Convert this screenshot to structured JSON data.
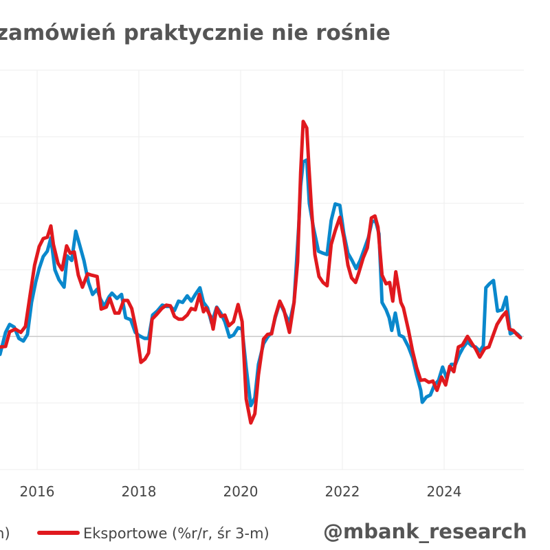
{
  "chart_data": {
    "type": "line",
    "title": "zamówień praktycznie nie rośnie",
    "xlabel": "",
    "ylabel": "",
    "xlim": [
      2015.27,
      2025.57
    ],
    "ylim": [
      -20,
      40
    ],
    "grid": true,
    "y_gridlines": [
      -20,
      -10,
      0,
      10,
      20,
      30,
      40
    ],
    "x_ticks": [
      2016,
      2018,
      2020,
      2022,
      2024
    ],
    "x_tick_labels": [
      "2016",
      "2018",
      "2020",
      "2022",
      "2024"
    ],
    "legend_placement": "bottom",
    "watermark": "@mbank_research",
    "series": [
      {
        "name": "m)",
        "color": "#0a88cc",
        "points": [
          [
            2015.27,
            -2.7
          ],
          [
            2015.38,
            0.6
          ],
          [
            2015.46,
            1.8
          ],
          [
            2015.55,
            1.4
          ],
          [
            2015.64,
            -0.3
          ],
          [
            2015.73,
            -0.7
          ],
          [
            2015.81,
            0.3
          ],
          [
            2015.89,
            5.1
          ],
          [
            2015.97,
            8.1
          ],
          [
            2016.04,
            10.2
          ],
          [
            2016.12,
            12.0
          ],
          [
            2016.2,
            12.8
          ],
          [
            2016.27,
            14.8
          ],
          [
            2016.35,
            10.0
          ],
          [
            2016.43,
            8.5
          ],
          [
            2016.53,
            7.4
          ],
          [
            2016.59,
            12.1
          ],
          [
            2016.68,
            11.4
          ],
          [
            2016.76,
            15.8
          ],
          [
            2016.84,
            13.6
          ],
          [
            2016.92,
            11.4
          ],
          [
            2017.01,
            8.1
          ],
          [
            2017.09,
            6.3
          ],
          [
            2017.18,
            7.1
          ],
          [
            2017.24,
            5.7
          ],
          [
            2017.32,
            4.5
          ],
          [
            2017.41,
            5.9
          ],
          [
            2017.47,
            6.5
          ],
          [
            2017.57,
            5.7
          ],
          [
            2017.66,
            6.3
          ],
          [
            2017.74,
            2.8
          ],
          [
            2017.84,
            2.5
          ],
          [
            2017.93,
            0.6
          ],
          [
            2018.01,
            0.1
          ],
          [
            2018.11,
            -0.3
          ],
          [
            2018.19,
            -0.3
          ],
          [
            2018.27,
            3.2
          ],
          [
            2018.36,
            3.8
          ],
          [
            2018.46,
            4.7
          ],
          [
            2018.54,
            4.5
          ],
          [
            2018.62,
            4.5
          ],
          [
            2018.7,
            3.9
          ],
          [
            2018.78,
            5.3
          ],
          [
            2018.86,
            5.1
          ],
          [
            2018.95,
            6.1
          ],
          [
            2019.03,
            5.3
          ],
          [
            2019.11,
            6.3
          ],
          [
            2019.2,
            7.3
          ],
          [
            2019.27,
            5.1
          ],
          [
            2019.35,
            4.3
          ],
          [
            2019.43,
            2.0
          ],
          [
            2019.53,
            4.4
          ],
          [
            2019.61,
            3.5
          ],
          [
            2019.69,
            2.2
          ],
          [
            2019.78,
            -0.1
          ],
          [
            2019.86,
            0.2
          ],
          [
            2019.95,
            1.3
          ],
          [
            2020.03,
            1.1
          ],
          [
            2020.11,
            -4.7
          ],
          [
            2020.2,
            -10.4
          ],
          [
            2020.28,
            -9.2
          ],
          [
            2020.35,
            -4.2
          ],
          [
            2020.45,
            -1.1
          ],
          [
            2020.53,
            -0.1
          ],
          [
            2020.61,
            0.6
          ],
          [
            2020.68,
            2.8
          ],
          [
            2020.77,
            5.1
          ],
          [
            2020.85,
            3.8
          ],
          [
            2020.96,
            2.0
          ],
          [
            2021.05,
            5.1
          ],
          [
            2021.14,
            16.4
          ],
          [
            2021.18,
            22.6
          ],
          [
            2021.23,
            26.2
          ],
          [
            2021.3,
            26.5
          ],
          [
            2021.35,
            20.0
          ],
          [
            2021.43,
            16.4
          ],
          [
            2021.53,
            12.8
          ],
          [
            2021.62,
            12.5
          ],
          [
            2021.7,
            12.3
          ],
          [
            2021.78,
            17.4
          ],
          [
            2021.86,
            19.9
          ],
          [
            2021.95,
            19.7
          ],
          [
            2022.03,
            15.4
          ],
          [
            2022.11,
            12.5
          ],
          [
            2022.19,
            11.4
          ],
          [
            2022.27,
            10.2
          ],
          [
            2022.35,
            11.4
          ],
          [
            2022.43,
            13.1
          ],
          [
            2022.51,
            14.8
          ],
          [
            2022.58,
            17.2
          ],
          [
            2022.65,
            17.4
          ],
          [
            2022.72,
            15.4
          ],
          [
            2022.78,
            5.1
          ],
          [
            2022.86,
            4.0
          ],
          [
            2022.92,
            2.8
          ],
          [
            2022.97,
            0.9
          ],
          [
            2023.04,
            3.5
          ],
          [
            2023.12,
            0.2
          ],
          [
            2023.2,
            -0.1
          ],
          [
            2023.3,
            -1.6
          ],
          [
            2023.38,
            -3.2
          ],
          [
            2023.46,
            -5.8
          ],
          [
            2023.54,
            -8.1
          ],
          [
            2023.57,
            -9.9
          ],
          [
            2023.65,
            -9.1
          ],
          [
            2023.73,
            -8.8
          ],
          [
            2023.81,
            -7.3
          ],
          [
            2023.89,
            -6.6
          ],
          [
            2023.97,
            -4.6
          ],
          [
            2024.05,
            -6.3
          ],
          [
            2024.14,
            -4.2
          ],
          [
            2024.22,
            -4.2
          ],
          [
            2024.3,
            -2.7
          ],
          [
            2024.38,
            -1.6
          ],
          [
            2024.46,
            -0.8
          ],
          [
            2024.54,
            -1.4
          ],
          [
            2024.62,
            -1.6
          ],
          [
            2024.7,
            -2.2
          ],
          [
            2024.77,
            -1.4
          ],
          [
            2024.82,
            7.3
          ],
          [
            2024.89,
            7.9
          ],
          [
            2024.97,
            8.4
          ],
          [
            2025.05,
            3.8
          ],
          [
            2025.14,
            4.0
          ],
          [
            2025.22,
            5.9
          ],
          [
            2025.3,
            0.4
          ],
          [
            2025.38,
            0.7
          ],
          [
            2025.45,
            0.3
          ],
          [
            2025.5,
            -0.1
          ]
        ]
      },
      {
        "name": "Eksportowe (%r/r, śr 3-m)",
        "color": "#e0191e",
        "points": [
          [
            2015.27,
            -1.6
          ],
          [
            2015.38,
            -1.5
          ],
          [
            2015.46,
            0.7
          ],
          [
            2015.57,
            1.1
          ],
          [
            2015.68,
            0.6
          ],
          [
            2015.77,
            1.5
          ],
          [
            2015.86,
            6.1
          ],
          [
            2015.95,
            10.7
          ],
          [
            2016.04,
            13.5
          ],
          [
            2016.12,
            14.7
          ],
          [
            2016.2,
            14.9
          ],
          [
            2016.27,
            16.6
          ],
          [
            2016.32,
            13.8
          ],
          [
            2016.41,
            11.0
          ],
          [
            2016.49,
            10.0
          ],
          [
            2016.58,
            13.6
          ],
          [
            2016.65,
            12.5
          ],
          [
            2016.73,
            12.7
          ],
          [
            2016.81,
            9.2
          ],
          [
            2016.89,
            7.4
          ],
          [
            2016.99,
            9.4
          ],
          [
            2017.07,
            9.2
          ],
          [
            2017.18,
            9.0
          ],
          [
            2017.26,
            4.1
          ],
          [
            2017.36,
            4.4
          ],
          [
            2017.43,
            5.7
          ],
          [
            2017.53,
            3.5
          ],
          [
            2017.61,
            3.5
          ],
          [
            2017.7,
            5.4
          ],
          [
            2017.78,
            5.4
          ],
          [
            2017.86,
            4.2
          ],
          [
            2017.95,
            0.9
          ],
          [
            2018.04,
            -3.9
          ],
          [
            2018.12,
            -3.4
          ],
          [
            2018.19,
            -2.5
          ],
          [
            2018.26,
            2.6
          ],
          [
            2018.35,
            3.3
          ],
          [
            2018.45,
            4.2
          ],
          [
            2018.54,
            4.7
          ],
          [
            2018.62,
            4.6
          ],
          [
            2018.7,
            3.0
          ],
          [
            2018.78,
            2.6
          ],
          [
            2018.86,
            2.6
          ],
          [
            2018.95,
            3.2
          ],
          [
            2019.03,
            4.2
          ],
          [
            2019.11,
            4.0
          ],
          [
            2019.19,
            6.3
          ],
          [
            2019.27,
            3.7
          ],
          [
            2019.32,
            4.3
          ],
          [
            2019.41,
            3.0
          ],
          [
            2019.46,
            1.1
          ],
          [
            2019.53,
            4.3
          ],
          [
            2019.61,
            3.0
          ],
          [
            2019.69,
            3.2
          ],
          [
            2019.77,
            1.6
          ],
          [
            2019.86,
            2.2
          ],
          [
            2019.95,
            4.8
          ],
          [
            2020.03,
            2.2
          ],
          [
            2020.11,
            -9.4
          ],
          [
            2020.2,
            -13.0
          ],
          [
            2020.28,
            -11.6
          ],
          [
            2020.35,
            -5.8
          ],
          [
            2020.45,
            -0.4
          ],
          [
            2020.53,
            0.3
          ],
          [
            2020.61,
            0.4
          ],
          [
            2020.68,
            3.0
          ],
          [
            2020.77,
            5.3
          ],
          [
            2020.85,
            4.0
          ],
          [
            2020.96,
            0.6
          ],
          [
            2021.05,
            5.1
          ],
          [
            2021.12,
            11.2
          ],
          [
            2021.18,
            24.6
          ],
          [
            2021.23,
            32.3
          ],
          [
            2021.3,
            31.3
          ],
          [
            2021.34,
            25.7
          ],
          [
            2021.39,
            19.5
          ],
          [
            2021.46,
            12.3
          ],
          [
            2021.54,
            9.0
          ],
          [
            2021.62,
            8.1
          ],
          [
            2021.7,
            7.6
          ],
          [
            2021.78,
            13.8
          ],
          [
            2021.86,
            15.9
          ],
          [
            2021.95,
            17.9
          ],
          [
            2022.03,
            14.8
          ],
          [
            2022.11,
            10.7
          ],
          [
            2022.18,
            8.8
          ],
          [
            2022.26,
            8.1
          ],
          [
            2022.32,
            9.5
          ],
          [
            2022.41,
            11.8
          ],
          [
            2022.49,
            13.3
          ],
          [
            2022.57,
            17.8
          ],
          [
            2022.64,
            18.1
          ],
          [
            2022.7,
            16.4
          ],
          [
            2022.78,
            9.2
          ],
          [
            2022.86,
            7.9
          ],
          [
            2022.93,
            8.1
          ],
          [
            2022.99,
            5.3
          ],
          [
            2023.05,
            9.7
          ],
          [
            2023.15,
            5.1
          ],
          [
            2023.2,
            4.3
          ],
          [
            2023.3,
            0.9
          ],
          [
            2023.38,
            -2.2
          ],
          [
            2023.46,
            -4.7
          ],
          [
            2023.54,
            -6.6
          ],
          [
            2023.62,
            -6.5
          ],
          [
            2023.7,
            -6.9
          ],
          [
            2023.78,
            -6.7
          ],
          [
            2023.86,
            -8.1
          ],
          [
            2023.95,
            -6.1
          ],
          [
            2024.03,
            -7.3
          ],
          [
            2024.11,
            -4.5
          ],
          [
            2024.19,
            -5.3
          ],
          [
            2024.28,
            -1.6
          ],
          [
            2024.36,
            -1.3
          ],
          [
            2024.46,
            0.0
          ],
          [
            2024.54,
            -1.0
          ],
          [
            2024.62,
            -1.9
          ],
          [
            2024.7,
            -3.1
          ],
          [
            2024.8,
            -1.8
          ],
          [
            2024.88,
            -1.6
          ],
          [
            2024.96,
            0.1
          ],
          [
            2025.04,
            1.8
          ],
          [
            2025.14,
            3.0
          ],
          [
            2025.22,
            3.7
          ],
          [
            2025.28,
            1.1
          ],
          [
            2025.36,
            0.9
          ],
          [
            2025.43,
            0.3
          ],
          [
            2025.5,
            -0.2
          ]
        ]
      }
    ]
  }
}
